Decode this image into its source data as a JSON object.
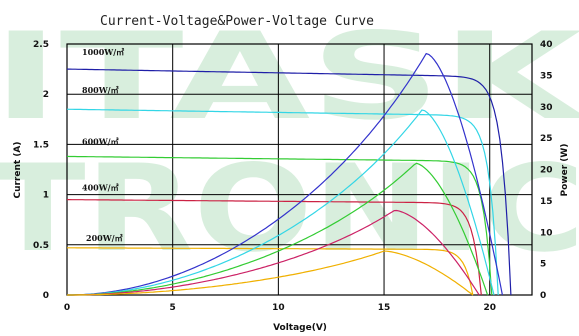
{
  "chart_data": {
    "type": "line",
    "title": "Current-Voltage&Power-Voltage Curve",
    "xlabel": "Voltage(V)",
    "ylabel": "Current (A)",
    "y2label": "Power (W)",
    "xlim": [
      0,
      22
    ],
    "ylim": [
      0,
      2.5
    ],
    "y2lim": [
      0,
      40
    ],
    "x_ticks": [
      0,
      5,
      10,
      15,
      20
    ],
    "y_ticks": [
      "0",
      "0.5",
      "1",
      "1.5",
      "2",
      "2.5"
    ],
    "y2_ticks": [
      "0",
      "5",
      "10",
      "15",
      "20",
      "25",
      "30",
      "35",
      "40"
    ],
    "grid": true,
    "watermark": [
      "ITASK",
      "TRONIC"
    ],
    "irradiance_labels": [
      {
        "text": "1000W/㎡",
        "current": 2.42
      },
      {
        "text": "800W/㎡",
        "current": 2.04
      },
      {
        "text": "600W/㎡",
        "current": 1.53
      },
      {
        "text": "400W/㎡",
        "current": 1.07
      },
      {
        "text": "200W/㎡",
        "current": 0.57
      }
    ],
    "series": [
      {
        "group": "iv",
        "color": "#1f1fa8",
        "Isc": 2.25,
        "Voc": 21.0,
        "knee": 17.0
      },
      {
        "group": "iv",
        "color": "#33d6e6",
        "Isc": 1.85,
        "Voc": 20.4,
        "knee": 16.7
      },
      {
        "group": "iv",
        "color": "#33cc33",
        "Isc": 1.38,
        "Voc": 20.1,
        "knee": 16.5
      },
      {
        "group": "iv",
        "color": "#cc2244",
        "Isc": 0.95,
        "Voc": 19.6,
        "knee": 16.0
      },
      {
        "group": "iv",
        "color": "#f0b000",
        "Isc": 0.47,
        "Voc": 19.2,
        "knee": 15.5
      },
      {
        "group": "pv",
        "color": "#3333cc",
        "Pmax": 38.5,
        "Vmp": 17.0,
        "Voc": 20.6
      },
      {
        "group": "pv",
        "color": "#33d6e6",
        "Pmax": 29.5,
        "Vmp": 16.8,
        "Voc": 20.2
      },
      {
        "group": "pv",
        "color": "#33cc33",
        "Pmax": 21.0,
        "Vmp": 16.5,
        "Voc": 19.9
      },
      {
        "group": "pv",
        "color": "#cc2266",
        "Pmax": 13.5,
        "Vmp": 15.5,
        "Voc": 19.5
      },
      {
        "group": "pv",
        "color": "#f0b000",
        "Pmax": 7.0,
        "Vmp": 15.0,
        "Voc": 19.2
      }
    ]
  }
}
